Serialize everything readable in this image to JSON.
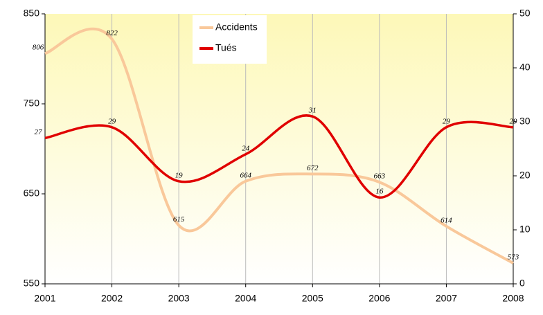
{
  "chart_data": {
    "type": "line",
    "x": [
      2001,
      2002,
      2003,
      2004,
      2005,
      2006,
      2007,
      2008
    ],
    "xlim": [
      2001,
      2008
    ],
    "xticks": [
      2001,
      2002,
      2003,
      2004,
      2005,
      2006,
      2007,
      2008
    ],
    "ylim": [
      550,
      850
    ],
    "yticks": [
      550,
      650,
      750,
      850
    ],
    "y2lim": [
      0,
      50
    ],
    "y2ticks": [
      0,
      10,
      20,
      30,
      40,
      50
    ],
    "grid": true,
    "smooth": true,
    "series": [
      {
        "name": "Accidents",
        "color": "#f9c89a",
        "values": [
          806,
          822,
          615,
          664,
          672,
          663,
          614,
          573
        ]
      },
      {
        "name": "Tués",
        "color": "#e00000",
        "axis": "y2",
        "values": [
          27,
          29,
          19,
          24,
          31,
          16,
          29,
          29
        ]
      }
    ]
  }
}
